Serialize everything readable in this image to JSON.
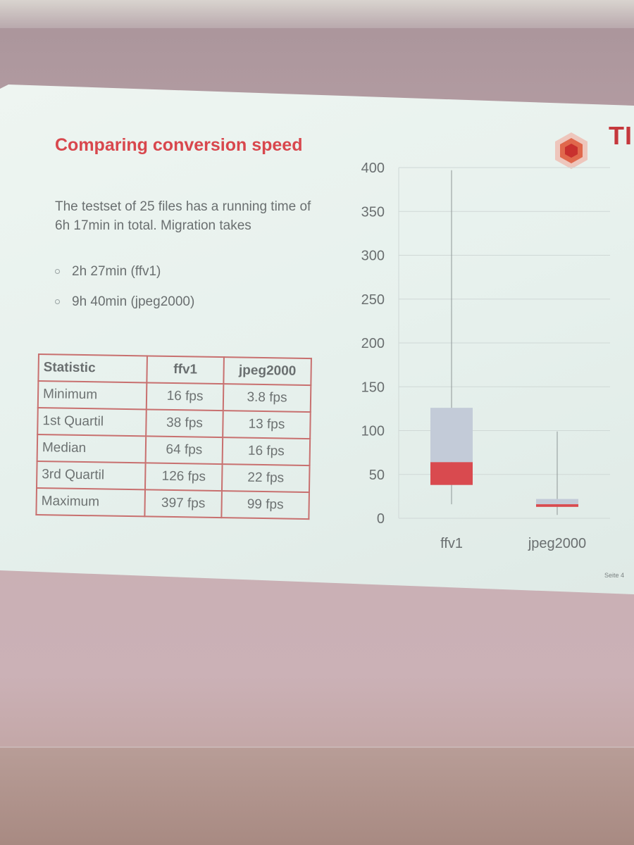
{
  "slide": {
    "title": "Comparing conversion speed",
    "logo_text": "TII",
    "intro": "The testset of 25 files has a running time of 6h 17min in total. Migration takes",
    "bullets": [
      {
        "text": "2h 27min (ffv1)"
      },
      {
        "text": "9h 40min (jpeg2000)"
      }
    ],
    "page_label": "Seite 4"
  },
  "table": {
    "headers": [
      "Statistic",
      "ffv1",
      "jpeg2000"
    ],
    "rows": [
      {
        "label": "Minimum",
        "ffv1": "16 fps",
        "jpeg2000": "3.8 fps"
      },
      {
        "label": "1st Quartil",
        "ffv1": "38 fps",
        "jpeg2000": "13 fps"
      },
      {
        "label": "Median",
        "ffv1": "64 fps",
        "jpeg2000": "16 fps"
      },
      {
        "label": "3rd Quartil",
        "ffv1": "126 fps",
        "jpeg2000": "22 fps"
      },
      {
        "label": "Maximum",
        "ffv1": "397 fps",
        "jpeg2000": "99 fps"
      }
    ]
  },
  "colors": {
    "accent_red": "#d8474d",
    "box_upper": "#c3cbd8",
    "box_lower": "#d94a4f",
    "slide_bg": "#e9f2ee"
  },
  "chart_data": {
    "type": "box",
    "categories": [
      "ffv1",
      "jpeg2000"
    ],
    "ylim": [
      0,
      400
    ],
    "yticks": [
      0,
      50,
      100,
      150,
      200,
      250,
      300,
      350,
      400
    ],
    "grid": true,
    "boxes": [
      {
        "category": "ffv1",
        "min": 16,
        "q1": 38,
        "median": 64,
        "q3": 126,
        "max": 397
      },
      {
        "category": "jpeg2000",
        "min": 3.8,
        "q1": 13,
        "median": 16,
        "q3": 22,
        "max": 99
      }
    ]
  }
}
